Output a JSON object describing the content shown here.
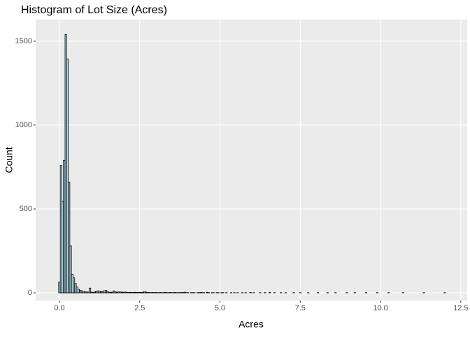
{
  "chart_data": {
    "type": "histogram",
    "title": "Histogram of Lot Size (Acres)",
    "x_label": "Acres",
    "y_label": "Count",
    "bins": [
      -0.025,
      0.025,
      0.075,
      0.125,
      0.175,
      0.225,
      0.275,
      0.325,
      0.375,
      0.425,
      0.475,
      0.525,
      0.575,
      0.625,
      0.675,
      0.725,
      0.775,
      0.825,
      0.875,
      0.925,
      0.975,
      1.025,
      1.075,
      1.125,
      1.175,
      1.225,
      1.275,
      1.325,
      1.375,
      1.425,
      1.475,
      1.525,
      1.575,
      1.625,
      1.675,
      1.725,
      1.775,
      1.825,
      1.875,
      1.925,
      1.975,
      2.025,
      2.075,
      2.125,
      2.175,
      2.225,
      2.275,
      2.325,
      2.375,
      2.425,
      2.475,
      2.525,
      2.575,
      2.625,
      2.675,
      2.725,
      2.775,
      2.825,
      2.875,
      2.925,
      2.975,
      3.025,
      3.075,
      3.125,
      3.175,
      3.225,
      3.275,
      3.325,
      3.375,
      3.425,
      3.475,
      3.525,
      3.575,
      3.625,
      3.675,
      3.725,
      3.775,
      3.825,
      3.875,
      3.925,
      3.975,
      4.025,
      4.075,
      4.125,
      4.175,
      4.225,
      4.275,
      4.325,
      4.375,
      4.425,
      4.475,
      4.525,
      4.575,
      4.625,
      4.675,
      4.725,
      4.775,
      4.825,
      4.875,
      4.925,
      4.975,
      5.025,
      5.075,
      5.125,
      5.175,
      5.225,
      5.275,
      5.325,
      5.375,
      5.425,
      5.475,
      5.525,
      5.575,
      5.625,
      5.675,
      5.725,
      5.775,
      5.825,
      5.875,
      5.925,
      5.975,
      6.025,
      6.075,
      6.125,
      6.175,
      6.225,
      6.275,
      6.325,
      6.375,
      6.425,
      6.475,
      6.525,
      6.575,
      6.625,
      6.675,
      6.725,
      6.775,
      6.825,
      6.875,
      6.925,
      6.975,
      7.025,
      7.075,
      7.125,
      7.175,
      7.225,
      7.275,
      7.325,
      7.375,
      7.425,
      7.475,
      7.525,
      7.575,
      7.625,
      7.675,
      7.725,
      7.775,
      7.825,
      7.875,
      7.925,
      7.975,
      8.025,
      8.075,
      8.125,
      8.175,
      8.225,
      8.275,
      8.325,
      8.375,
      8.425,
      8.475,
      8.525,
      8.575,
      8.625,
      8.675,
      8.725,
      8.775,
      8.825,
      8.875,
      8.925,
      8.975,
      9.025,
      9.075,
      9.125,
      9.175,
      9.225,
      9.275,
      9.325,
      9.375,
      9.425,
      9.475,
      9.525,
      9.575,
      9.625,
      9.675,
      9.725,
      9.775,
      9.825,
      9.875,
      9.925,
      9.975,
      10.025,
      10.075,
      10.125,
      10.175,
      10.225,
      10.275,
      10.325,
      10.375,
      10.425,
      10.475,
      10.525,
      10.575,
      10.625,
      10.675,
      10.725,
      10.775,
      10.825,
      10.875,
      10.925,
      10.975,
      11.025,
      11.075,
      11.125,
      11.175,
      11.225,
      11.275,
      11.325,
      11.375,
      11.425,
      11.475,
      11.525,
      11.575,
      11.625,
      11.675,
      11.725,
      11.775,
      11.825,
      11.875,
      11.925,
      11.975,
      12.025
    ],
    "values": [
      65,
      760,
      545,
      790,
      1540,
      1395,
      660,
      280,
      110,
      90,
      55,
      35,
      20,
      15,
      12,
      8,
      6,
      5,
      5,
      28,
      4,
      3,
      5,
      10,
      12,
      8,
      10,
      6,
      12,
      14,
      8,
      4,
      3,
      4,
      12,
      5,
      4,
      6,
      5,
      4,
      3,
      5,
      3,
      2,
      3,
      2,
      2,
      3,
      2,
      2,
      3,
      2,
      3,
      8,
      4,
      2,
      2,
      1,
      2,
      1,
      2,
      1,
      1,
      2,
      1,
      1,
      3,
      1,
      1,
      2,
      1,
      1,
      2,
      1,
      1,
      1,
      2,
      1,
      4,
      1,
      1,
      0,
      1,
      1,
      1,
      0,
      1,
      1,
      2,
      1,
      1,
      0,
      3,
      1,
      0,
      1,
      1,
      0,
      1,
      1,
      0,
      1,
      1,
      0,
      1,
      0,
      0,
      1,
      0,
      1,
      0,
      1,
      0,
      0,
      1,
      0,
      1,
      0,
      0,
      2,
      0,
      1,
      0,
      0,
      0,
      1,
      0,
      0,
      1,
      0,
      0,
      2,
      0,
      0,
      1,
      0,
      0,
      0,
      1,
      0,
      0,
      1,
      0,
      0,
      0,
      0,
      1,
      0,
      0,
      0,
      1,
      0,
      0,
      0,
      0,
      1,
      0,
      0,
      0,
      0,
      0,
      1,
      0,
      0,
      0,
      0,
      0,
      1,
      0,
      0,
      0,
      0,
      1,
      0,
      0,
      0,
      0,
      0,
      0,
      1,
      0,
      0,
      0,
      0,
      1,
      0,
      0,
      0,
      0,
      0,
      0,
      1,
      0,
      0,
      0,
      0,
      0,
      0,
      1,
      0,
      0,
      0,
      0,
      0,
      0,
      1,
      0,
      0,
      0,
      0,
      0,
      0,
      0,
      0,
      1,
      0,
      0,
      0,
      0,
      0,
      0,
      0,
      0,
      0,
      0,
      0,
      0,
      1,
      0,
      0,
      0,
      0,
      0,
      0,
      0,
      0,
      0,
      0,
      0,
      0,
      1
    ],
    "color": "#add8e6",
    "edge_color": "#000000",
    "xlim": [
      -0.74,
      12.7
    ],
    "ylim": [
      -46,
      1629
    ],
    "xticks": [
      {
        "value": 0,
        "label": "0.0"
      },
      {
        "value": 2.5,
        "label": "2.5"
      },
      {
        "value": 5,
        "label": "5.0"
      },
      {
        "value": 7.5,
        "label": "7.5"
      },
      {
        "value": 10,
        "label": "10.0"
      },
      {
        "value": 12.5,
        "label": "12.5"
      }
    ],
    "yticks": [
      0,
      500,
      1000,
      1500
    ],
    "grid": true
  }
}
